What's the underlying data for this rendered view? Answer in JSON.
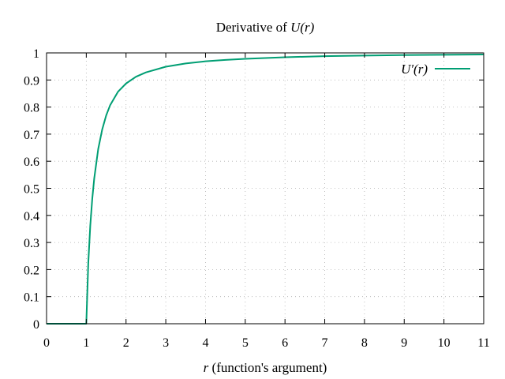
{
  "chart_data": {
    "type": "line",
    "title_prefix": "Derivative of ",
    "title_symbol": "U(r)",
    "xlabel_symbol": "r",
    "xlabel_rest": " (function's argument)",
    "ylabel": "",
    "xlim": [
      0,
      11
    ],
    "ylim": [
      0,
      1
    ],
    "x_ticks": [
      0,
      1,
      2,
      3,
      4,
      5,
      6,
      7,
      8,
      9,
      10,
      11
    ],
    "y_ticks": [
      0,
      0.1,
      0.2,
      0.3,
      0.4,
      0.5,
      0.6,
      0.7,
      0.8,
      0.9,
      1
    ],
    "y_tick_labels": [
      "0",
      "0.1",
      "0.2",
      "0.3",
      "0.4",
      "0.5",
      "0.6",
      "0.7",
      "0.8",
      "0.9",
      "1"
    ],
    "x_tick_labels": [
      "0",
      "1",
      "2",
      "3",
      "4",
      "5",
      "6",
      "7",
      "8",
      "9",
      "10",
      "11"
    ],
    "grid": true,
    "legend_position": "top-right",
    "series": [
      {
        "name": "U′(r)",
        "color": "#009e73",
        "x": [
          0,
          1,
          1.05,
          1.1,
          1.15,
          1.2,
          1.3,
          1.4,
          1.5,
          1.6,
          1.8,
          2,
          2.25,
          2.5,
          3,
          3.5,
          4,
          4.5,
          5,
          6,
          7,
          8,
          9,
          10,
          11
        ],
        "y": [
          0,
          0,
          0.224,
          0.362,
          0.461,
          0.537,
          0.645,
          0.717,
          0.769,
          0.807,
          0.857,
          0.887,
          0.912,
          0.928,
          0.949,
          0.961,
          0.969,
          0.974,
          0.978,
          0.984,
          0.988,
          0.99,
          0.992,
          0.993,
          0.994
        ]
      }
    ]
  }
}
